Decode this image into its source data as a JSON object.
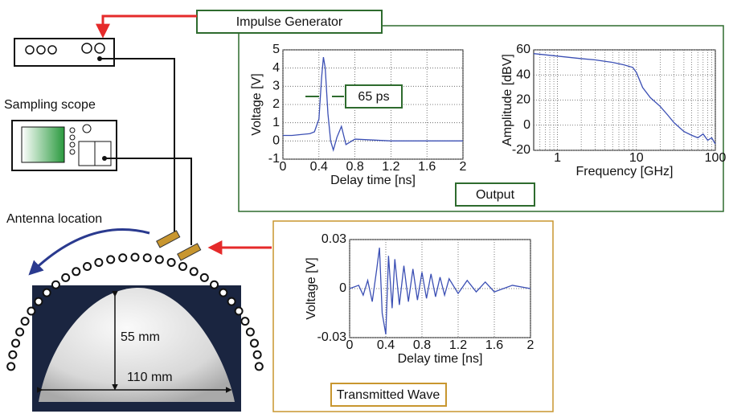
{
  "labels": {
    "impulse_generator": "Impulse Generator",
    "sampling_scope": "Sampling scope",
    "antenna_location": "Antenna location",
    "output": "Output",
    "transmitted_wave": "Transmitted Wave",
    "height": "55 mm",
    "width": "110 mm"
  },
  "chart_data": [
    {
      "type": "line",
      "x_label": "Delay time [ns]",
      "y_label": "Voltage [V]",
      "annotation": "65 ps",
      "xlim": [
        0,
        2
      ],
      "xticks": [
        0,
        0.4,
        0.8,
        1.2,
        1.6,
        2
      ],
      "ylim": [
        -1,
        5
      ],
      "yticks": [
        -1,
        0,
        1,
        2,
        3,
        4,
        5
      ],
      "grid": true,
      "x": [
        0,
        0.1,
        0.2,
        0.3,
        0.35,
        0.4,
        0.43,
        0.45,
        0.47,
        0.5,
        0.53,
        0.56,
        0.6,
        0.65,
        0.7,
        0.8,
        1.0,
        1.2,
        1.6,
        2
      ],
      "series": [
        {
          "color": "#3b4fb4",
          "values": [
            0.3,
            0.3,
            0.35,
            0.4,
            0.5,
            1.2,
            3.5,
            4.6,
            4.0,
            1.5,
            0.0,
            -0.5,
            0.2,
            0.8,
            -0.2,
            0.1,
            0.05,
            0,
            0,
            0
          ]
        }
      ]
    },
    {
      "type": "line",
      "x_label": "Frequency [GHz]",
      "y_label": "Amplitude [dBV]",
      "log_x": true,
      "xlim": [
        0.5,
        100
      ],
      "xticks": [
        1,
        10,
        100
      ],
      "xminorticks": [
        0.6,
        0.7,
        0.8,
        0.9,
        2,
        3,
        4,
        5,
        6,
        7,
        8,
        9,
        20,
        30,
        40,
        50,
        60,
        70,
        80,
        90
      ],
      "ylim": [
        -20,
        60
      ],
      "yticks": [
        -20,
        0,
        20,
        40,
        60
      ],
      "grid": true,
      "x": [
        0.5,
        1,
        2,
        3,
        5,
        7,
        9,
        10,
        12,
        15,
        20,
        25,
        30,
        40,
        50,
        60,
        70,
        80,
        90,
        100
      ],
      "series": [
        {
          "color": "#3b4fb4",
          "values": [
            57,
            55,
            53,
            52,
            50,
            48,
            46,
            42,
            30,
            22,
            15,
            8,
            2,
            -5,
            -8,
            -10,
            -7,
            -12,
            -10,
            -15
          ]
        }
      ]
    },
    {
      "type": "line",
      "x_label": "Delay time [ns]",
      "y_label": "Voltage [V]",
      "xlim": [
        0,
        2
      ],
      "xticks": [
        0,
        0.4,
        0.8,
        1.2,
        1.6,
        2
      ],
      "ylim": [
        -0.03,
        0.03
      ],
      "yticks": [
        -0.03,
        0,
        0.03
      ],
      "grid": true,
      "x": [
        0,
        0.1,
        0.15,
        0.2,
        0.25,
        0.3,
        0.33,
        0.36,
        0.4,
        0.43,
        0.47,
        0.5,
        0.55,
        0.6,
        0.65,
        0.7,
        0.75,
        0.8,
        0.85,
        0.9,
        0.95,
        1.0,
        1.05,
        1.1,
        1.2,
        1.3,
        1.4,
        1.5,
        1.6,
        1.8,
        2.0
      ],
      "series": [
        {
          "color": "#3b4fb4",
          "values": [
            0,
            0.002,
            -0.004,
            0.005,
            -0.008,
            0.012,
            0.025,
            -0.015,
            -0.028,
            0.02,
            -0.012,
            0.018,
            -0.01,
            0.014,
            -0.008,
            0.012,
            -0.007,
            0.01,
            -0.006,
            0.009,
            -0.005,
            0.007,
            -0.004,
            0.006,
            -0.003,
            0.005,
            -0.002,
            0.004,
            -0.002,
            0.002,
            0
          ]
        }
      ]
    }
  ]
}
